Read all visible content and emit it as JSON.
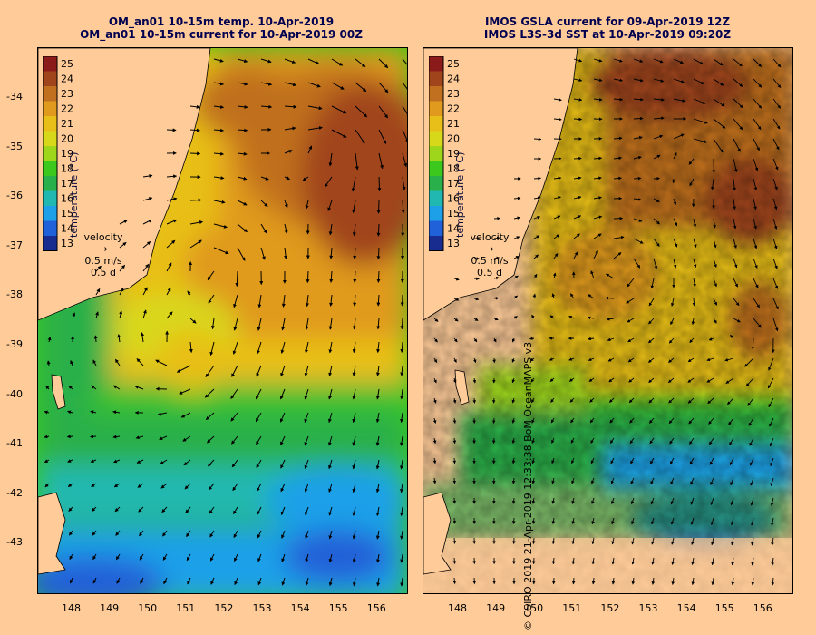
{
  "panels": [
    {
      "id": "left",
      "title_line1": "OM_an01 10-15m temp. 10-Apr-2019",
      "title_line2": "OM_an01 10-15m current for 10-Apr-2019 00Z"
    },
    {
      "id": "right",
      "title_line1": "IMOS GSLA current for 09-Apr-2019 12Z",
      "title_line2": "IMOS L3S-3d SST at 10-Apr-2019 09:20Z"
    }
  ],
  "colorbar": {
    "label": "temperature (°C)",
    "ticks": [
      "25",
      "24",
      "23",
      "22",
      "21",
      "20",
      "19",
      "18",
      "17",
      "16",
      "15",
      "14",
      "13"
    ],
    "colors": [
      "#8b1a1a",
      "#a0441c",
      "#c0701e",
      "#e09a1e",
      "#e8bf18",
      "#d8d81a",
      "#9ed61c",
      "#3cc81c",
      "#29b04a",
      "#20b8b0",
      "#1ea0e8",
      "#2060d8",
      "#182c90"
    ]
  },
  "velocity_legend": {
    "title": "velocity",
    "speed": "0.5 m/s",
    "duration": "0.5 d"
  },
  "x_ticks": [
    "148",
    "149",
    "150",
    "151",
    "152",
    "153",
    "154",
    "155",
    "156"
  ],
  "y_ticks": [
    "-34",
    "-35",
    "-36",
    "-37",
    "-38",
    "-39",
    "-40",
    "-41",
    "-42",
    "-43"
  ],
  "credit": "© CSIRO 2019   21-Apr-2019 12:33:38 BoM OceanMAPS v3",
  "colors": {
    "land": "#ffcc99",
    "background": "#ffcc99"
  }
}
